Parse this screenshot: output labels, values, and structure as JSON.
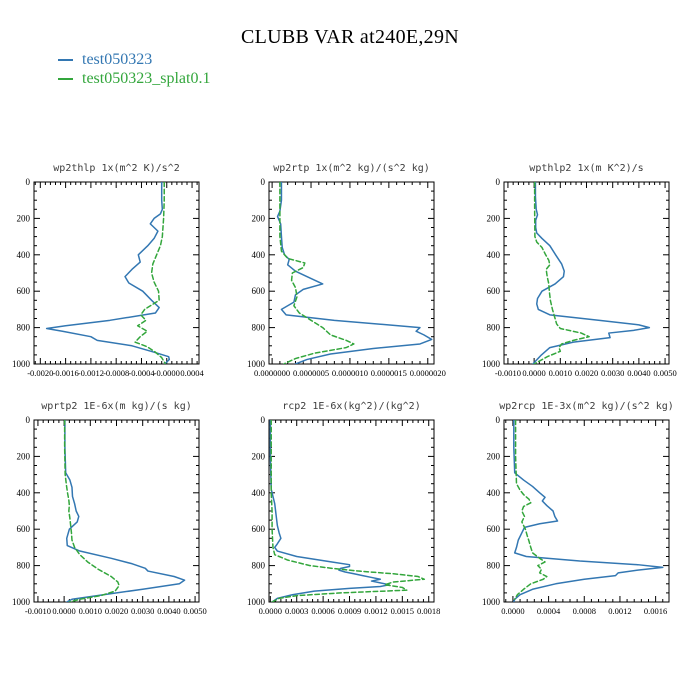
{
  "page_title": "CLUBB VAR at240E,29N",
  "legend": {
    "items": [
      {
        "label": "test050323",
        "color": "#3377b2"
      },
      {
        "label": "test050323_splat0.1",
        "color": "#33a63c"
      }
    ]
  },
  "colors": {
    "series_blue": "#3377b2",
    "series_green": "#33a63c",
    "frame": "#000000",
    "panel_title": "#3c3c3c"
  },
  "y_axis": {
    "tick_labels": [
      "0",
      "200",
      "400",
      "600",
      "800",
      "1000"
    ],
    "direction": "pressure increases downward"
  },
  "chart_data": [
    {
      "id": "wp2thlp",
      "type": "line",
      "title": "wp2thlp  1x(m^2 K)/s^2",
      "xlim": [
        -0.0021,
        0.00051
      ],
      "xticks": [
        -0.002,
        -0.0016,
        -0.0012,
        -0.0008,
        -0.0004,
        0.0,
        0.0004
      ],
      "xtick_labels": [
        "-0.0020",
        "-0.0016",
        "-0.0012",
        "-0.0008",
        "-0.0004",
        "-0.0000",
        "0.0004"
      ],
      "ylim": [
        0,
        1000
      ],
      "yticks": [
        0,
        200,
        400,
        600,
        800,
        1000
      ],
      "series": [
        {
          "name": "test050323",
          "color": "#3377b2",
          "dash": "solid",
          "pressure": [
            0,
            50,
            100,
            150,
            175,
            200,
            230,
            270,
            310,
            350,
            400,
            440,
            480,
            520,
            555,
            600,
            650,
            690,
            720,
            760,
            790,
            805,
            820,
            850,
            870,
            900,
            935,
            960,
            975,
            1000
          ],
          "values": [
            -8e-05,
            -8e-05,
            -8e-05,
            -7e-05,
            -0.0001,
            -0.0002,
            -0.00026,
            -0.00014,
            -0.0002,
            -0.0003,
            -0.00045,
            -0.00042,
            -0.00055,
            -0.00066,
            -0.0006,
            -0.00038,
            -0.00024,
            -0.00012,
            -0.00018,
            -0.0009,
            -0.0016,
            -0.0019,
            -0.00165,
            -0.0012,
            -0.0011,
            -0.00055,
            -0.0002,
            3e-05,
            4e-05,
            -3e-05
          ]
        },
        {
          "name": "test050323_splat0.1",
          "color": "#33a63c",
          "dash": "dashed",
          "pressure": [
            0,
            100,
            200,
            300,
            350,
            400,
            450,
            500,
            550,
            600,
            650,
            700,
            730,
            760,
            790,
            820,
            850,
            880,
            905,
            935,
            965,
            1000
          ],
          "values": [
            -4e-05,
            -4e-05,
            -5e-05,
            -7e-05,
            -0.0001,
            -0.00016,
            -0.00022,
            -0.00024,
            -0.0002,
            -0.00013,
            -0.00012,
            -0.00035,
            -0.00041,
            -0.00033,
            -0.00046,
            -0.00031,
            -0.00042,
            -0.0005,
            -0.00031,
            -0.00018,
            -8e-05,
            -2e-05
          ]
        }
      ]
    },
    {
      "id": "wp2rtp",
      "type": "line",
      "title": "wp2rtp  1x(m^2 kg)/(s^2 kg)",
      "xlim": [
        -4e-08,
        2.08e-06
      ],
      "xticks": [
        0.0,
        5e-07,
        1e-06,
        1.5e-06,
        2e-06
      ],
      "xtick_labels": [
        "0.0000000",
        "0.0000005",
        "0.0000010",
        "0.0000015",
        "0.0000020"
      ],
      "ylim": [
        0,
        1000
      ],
      "yticks": [
        0,
        200,
        400,
        600,
        800,
        1000
      ],
      "series": [
        {
          "name": "test050323",
          "color": "#3377b2",
          "dash": "solid",
          "pressure": [
            0,
            100,
            160,
            190,
            230,
            300,
            360,
            400,
            425,
            455,
            490,
            520,
            560,
            590,
            620,
            660,
            700,
            730,
            760,
            800,
            820,
            840,
            865,
            890,
            915,
            945,
            975,
            1000
          ],
          "values": [
            1.2e-07,
            1.2e-07,
            1e-07,
            7e-08,
            1.1e-07,
            1.2e-07,
            1.3e-07,
            1.6e-07,
            2.2e-07,
            2e-07,
            3e-07,
            4.5e-07,
            6.5e-07,
            4e-07,
            3e-07,
            2.8e-07,
            1.2e-07,
            1.8e-07,
            8e-07,
            1.9e-06,
            1.85e-06,
            1.95e-06,
            2.05e-06,
            1.9e-06,
            1.3e-06,
            7.5e-07,
            4.5e-07,
            3e-07
          ]
        },
        {
          "name": "test050323_splat0.1",
          "color": "#33a63c",
          "dash": "dashed",
          "pressure": [
            0,
            150,
            300,
            380,
            420,
            445,
            470,
            500,
            540,
            580,
            630,
            680,
            720,
            760,
            800,
            840,
            870,
            890,
            910,
            940,
            970,
            1000
          ],
          "values": [
            1e-07,
            1e-07,
            1e-07,
            1.2e-07,
            2e-07,
            4.2e-07,
            4e-07,
            2.6e-07,
            2.5e-07,
            3e-07,
            3.2e-07,
            2.8e-07,
            3.5e-07,
            5e-07,
            6.5e-07,
            7.5e-07,
            9.5e-07,
            1.05e-06,
            9.5e-07,
            5.5e-07,
            3e-07,
            1.5e-07
          ]
        }
      ]
    },
    {
      "id": "wpthlp2",
      "type": "line",
      "title": "wpthlp2  1x(m K^2)/s",
      "xlim": [
        -0.00115,
        0.00515
      ],
      "xticks": [
        -0.001,
        0.0,
        0.001,
        0.002,
        0.003,
        0.004,
        0.005
      ],
      "xtick_labels": [
        "-0.0010",
        "0.0000",
        "0.0010",
        "0.0020",
        "0.0030",
        "0.0040",
        "0.0050"
      ],
      "ylim": [
        0,
        1000
      ],
      "yticks": [
        0,
        200,
        400,
        600,
        800,
        1000
      ],
      "series": [
        {
          "name": "test050323",
          "color": "#3377b2",
          "dash": "solid",
          "pressure": [
            0,
            80,
            150,
            180,
            210,
            250,
            280,
            310,
            350,
            400,
            450,
            490,
            520,
            560,
            600,
            640,
            670,
            700,
            730,
            760,
            785,
            800,
            815,
            830,
            855,
            880,
            910,
            950,
            1000
          ],
          "values": [
            5e-05,
            5e-05,
            8e-05,
            0.00013,
            6e-05,
            6e-05,
            0.0001,
            0.0003,
            0.0006,
            0.00082,
            0.00105,
            0.00115,
            0.00112,
            0.0008,
            0.0003,
            0.00013,
            0.0001,
            0.00016,
            0.0006,
            0.0025,
            0.004,
            0.0044,
            0.0038,
            0.00285,
            0.0029,
            0.0015,
            0.0006,
            0.00028,
            -5e-05
          ]
        },
        {
          "name": "test050323_splat0.1",
          "color": "#33a63c",
          "dash": "dashed",
          "pressure": [
            0,
            150,
            300,
            330,
            360,
            400,
            430,
            455,
            480,
            520,
            560,
            600,
            650,
            700,
            750,
            780,
            805,
            830,
            850,
            870,
            890,
            910,
            930,
            960,
            1000
          ],
          "values": [
            2e-05,
            2e-05,
            3e-05,
            0.0001,
            0.0003,
            0.00044,
            0.00056,
            0.0006,
            0.00046,
            0.0005,
            0.00056,
            0.00058,
            0.00062,
            0.0007,
            0.0008,
            0.00086,
            0.001,
            0.0018,
            0.0021,
            0.0015,
            0.00105,
            0.00095,
            0.001,
            0.0005,
            0.0
          ]
        }
      ]
    },
    {
      "id": "wprtp2",
      "type": "line",
      "title": "wprtp2  1E-6x(m kg)/(s kg)",
      "xlim": [
        -0.00115,
        0.00515
      ],
      "xticks": [
        -0.001,
        0.0,
        0.001,
        0.002,
        0.003,
        0.004,
        0.005
      ],
      "xtick_labels": [
        "-0.0010",
        "0.0000",
        "0.0010",
        "0.0020",
        "0.0030",
        "0.0040",
        "0.0050"
      ],
      "ylim": [
        0,
        1000
      ],
      "yticks": [
        0,
        200,
        400,
        600,
        800,
        1000
      ],
      "series": [
        {
          "name": "test050323",
          "color": "#3377b2",
          "dash": "solid",
          "pressure": [
            0,
            150,
            290,
            330,
            370,
            420,
            460,
            500,
            530,
            560,
            600,
            650,
            690,
            720,
            760,
            790,
            815,
            830,
            860,
            880,
            900,
            930,
            960,
            985,
            1000
          ],
          "values": [
            3e-05,
            3e-05,
            6e-05,
            0.00022,
            0.0003,
            0.00032,
            0.0004,
            0.00046,
            0.00056,
            0.0005,
            0.0002,
            0.0001,
            0.00012,
            0.0006,
            0.0018,
            0.0026,
            0.0031,
            0.0032,
            0.0042,
            0.0046,
            0.0044,
            0.003,
            0.0015,
            0.0003,
            0.0001
          ]
        },
        {
          "name": "test050323_splat0.1",
          "color": "#33a63c",
          "dash": "dashed",
          "pressure": [
            0,
            150,
            300,
            360,
            400,
            440,
            470,
            500,
            540,
            580,
            620,
            660,
            700,
            740,
            780,
            820,
            860,
            890,
            910,
            940,
            965,
            985,
            1000
          ],
          "values": [
            2e-05,
            2e-05,
            4e-05,
            9e-05,
            0.00013,
            0.00018,
            0.0002,
            0.00018,
            0.00022,
            0.00025,
            0.00028,
            0.0003,
            0.0004,
            0.0006,
            0.0009,
            0.0013,
            0.0018,
            0.00205,
            0.0021,
            0.00195,
            0.0014,
            0.0006,
            0.0002
          ]
        }
      ]
    },
    {
      "id": "rcp2",
      "type": "line",
      "title": "rcp2  1E-6x(kg^2)/(kg^2)",
      "xlim": [
        -1.5e-05,
        0.00186
      ],
      "xticks": [
        0.0,
        0.0003,
        0.0006,
        0.0009,
        0.0012,
        0.0015,
        0.0018
      ],
      "xtick_labels": [
        "0.0000",
        "0.0003",
        "0.0006",
        "0.0009",
        "0.0012",
        "0.0015",
        "0.0018"
      ],
      "ylim": [
        0,
        1000
      ],
      "yticks": [
        0,
        200,
        400,
        600,
        800,
        1000
      ],
      "series": [
        {
          "name": "test050323",
          "color": "#3377b2",
          "dash": "solid",
          "pressure": [
            0,
            200,
            380,
            420,
            460,
            500,
            540,
            580,
            620,
            650,
            680,
            700,
            720,
            750,
            780,
            795,
            805,
            815,
            825,
            835,
            845,
            855,
            865,
            875,
            885,
            895,
            905,
            915,
            925,
            940,
            960,
            980,
            1000
          ],
          "values": [
            0.0,
            0.0,
            1e-05,
            3e-05,
            5e-05,
            6e-05,
            7e-05,
            8e-05,
            0.0001,
            0.00012,
            8e-05,
            5e-05,
            8e-05,
            0.0003,
            0.0007,
            0.0009,
            0.0009,
            0.0008,
            0.00078,
            0.00085,
            0.00095,
            0.00105,
            0.00115,
            0.00125,
            0.00115,
            0.00125,
            0.00135,
            0.00125,
            0.0009,
            0.0005,
            0.00025,
            8e-05,
            2e-05
          ]
        },
        {
          "name": "test050323_splat0.1",
          "color": "#33a63c",
          "dash": "dashed",
          "pressure": [
            0,
            200,
            400,
            500,
            600,
            700,
            740,
            770,
            800,
            815,
            830,
            845,
            860,
            875,
            890,
            905,
            920,
            935,
            950,
            965,
            980,
            1000
          ],
          "values": [
            1e-05,
            1e-05,
            1e-05,
            2e-05,
            2e-05,
            3e-05,
            5e-05,
            0.0002,
            0.00045,
            0.0007,
            0.001,
            0.0014,
            0.00168,
            0.00175,
            0.0014,
            0.0013,
            0.0015,
            0.00155,
            0.0008,
            0.0003,
            0.0001,
            2e-05
          ]
        }
      ]
    },
    {
      "id": "wp2rcp",
      "type": "line",
      "title": "wp2rcp  1E-3x(m^2 kg)/(s^2 kg)",
      "xlim": [
        -0.0001,
        0.00175
      ],
      "xticks": [
        0.0,
        0.0004,
        0.0008,
        0.0012,
        0.0016
      ],
      "xtick_labels": [
        "0.0000",
        "0.0004",
        "0.0008",
        "0.0012",
        "0.0016"
      ],
      "ylim": [
        0,
        1000
      ],
      "yticks": [
        0,
        200,
        400,
        600,
        800,
        1000
      ],
      "series": [
        {
          "name": "test050323",
          "color": "#3377b2",
          "dash": "solid",
          "pressure": [
            0,
            150,
            290,
            330,
            365,
            400,
            425,
            445,
            470,
            500,
            530,
            555,
            570,
            590,
            620,
            660,
            700,
            730,
            750,
            775,
            795,
            810,
            825,
            840,
            855,
            875,
            900,
            930,
            960,
            985,
            1000
          ],
          "values": [
            1e-05,
            1e-05,
            2e-05,
            0.00012,
            0.00022,
            0.0003,
            0.00036,
            0.00033,
            0.00038,
            0.00045,
            0.00047,
            0.0005,
            0.0003,
            0.00013,
            0.0001,
            6e-05,
            4e-05,
            2e-05,
            0.00015,
            0.00075,
            0.0014,
            0.00168,
            0.0014,
            0.00118,
            0.00115,
            0.0008,
            0.00048,
            0.00022,
            8e-05,
            2e-05,
            1e-05
          ]
        },
        {
          "name": "test050323_splat0.1",
          "color": "#33a63c",
          "dash": "dashed",
          "pressure": [
            0,
            200,
            350,
            385,
            410,
            435,
            455,
            475,
            500,
            530,
            560,
            600,
            635,
            665,
            700,
            730,
            760,
            780,
            800,
            820,
            840,
            860,
            875,
            900,
            930,
            960,
            985
          ],
          "values": [
            3e-05,
            3e-05,
            4e-05,
            8e-05,
            0.00012,
            0.00018,
            0.0002,
            0.00012,
            0.0001,
            0.00013,
            0.0001,
            0.00014,
            0.00016,
            0.00018,
            0.0002,
            0.00022,
            0.0003,
            0.00036,
            0.00028,
            0.00032,
            0.0003,
            0.00038,
            0.00034,
            0.0002,
            0.00012,
            5e-05,
            2e-05
          ]
        }
      ]
    }
  ]
}
